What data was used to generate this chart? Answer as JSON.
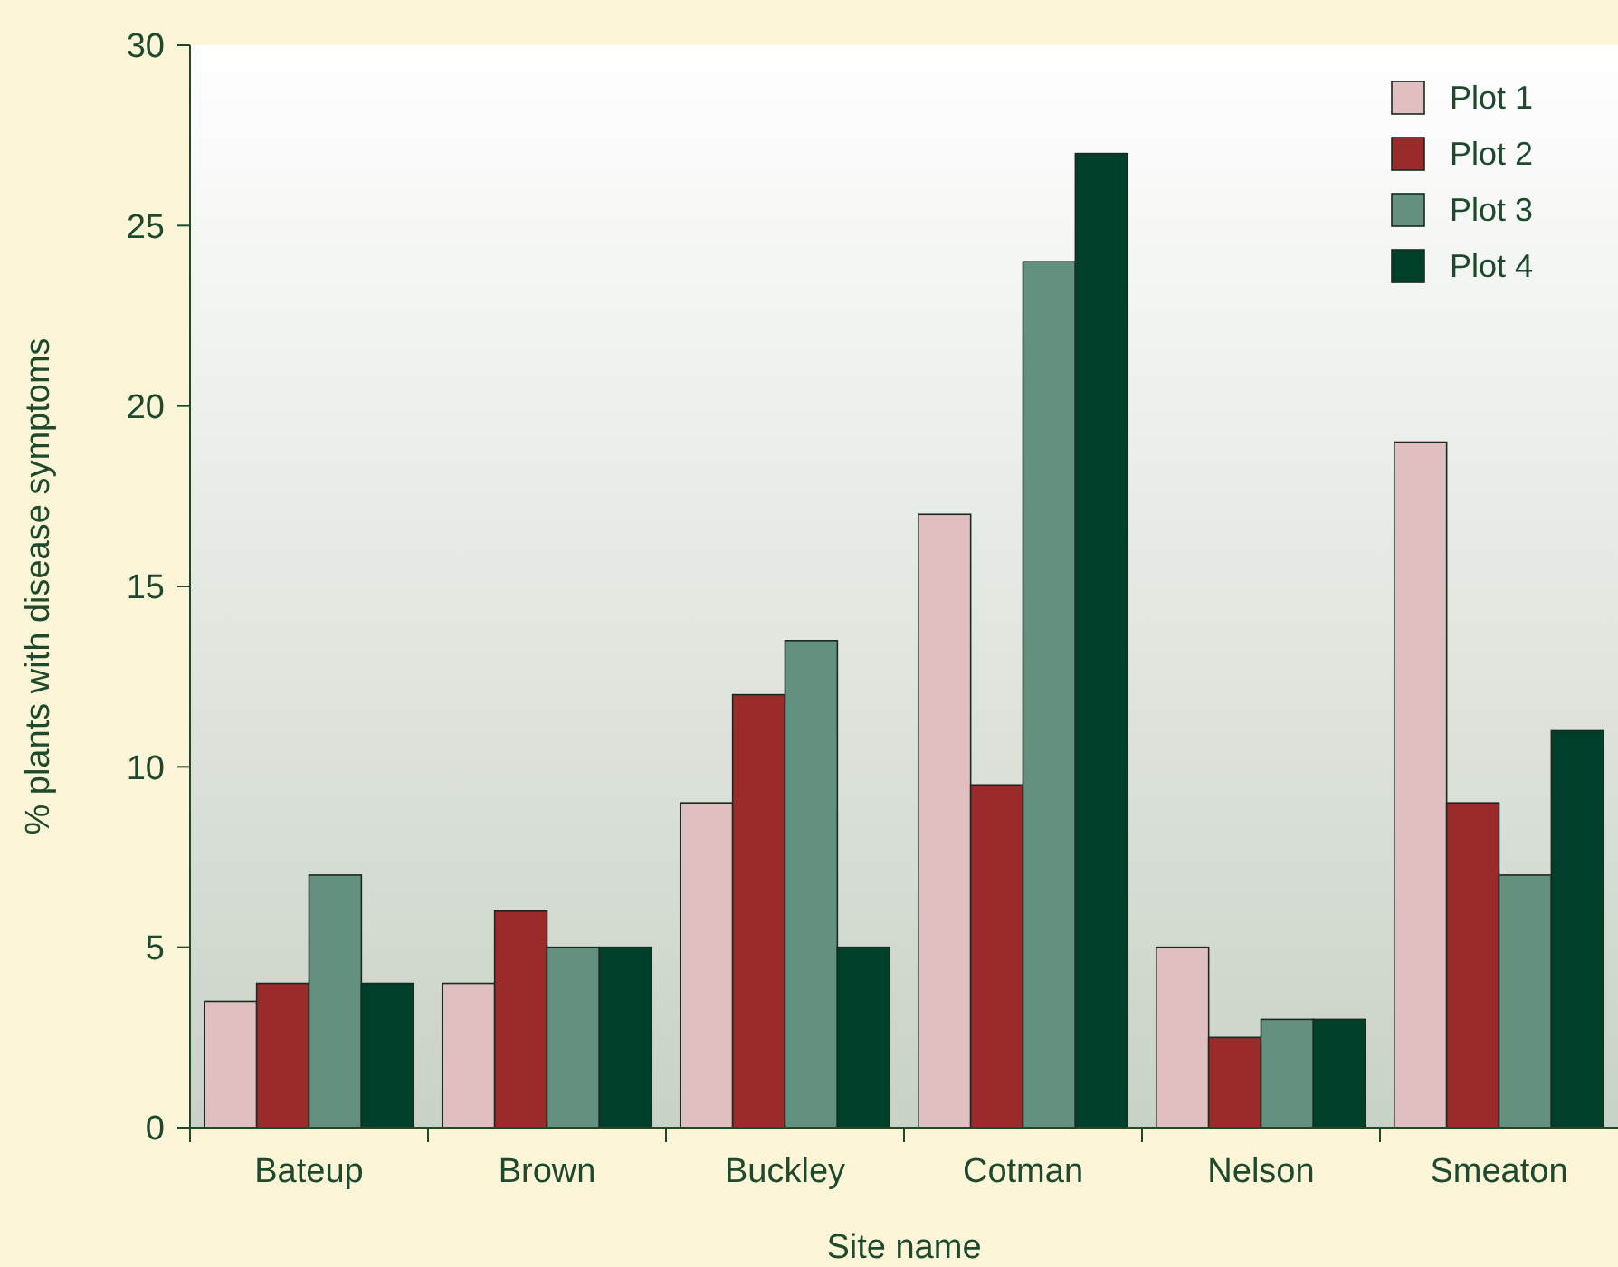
{
  "chart_data": {
    "type": "bar",
    "xlabel": "Site name",
    "ylabel": "% plants with disease symptoms",
    "categories": [
      "Bateup",
      "Brown",
      "Buckley",
      "Cotman",
      "Nelson",
      "Smeaton"
    ],
    "series": [
      {
        "name": "Plot 1",
        "color": "#e0bfc0",
        "values": [
          3.5,
          4,
          9,
          17,
          5,
          19
        ]
      },
      {
        "name": "Plot 2",
        "color": "#9b2a2a",
        "values": [
          4,
          6,
          12,
          9.5,
          2.5,
          9
        ]
      },
      {
        "name": "Plot 3",
        "color": "#649080",
        "values": [
          7,
          5,
          13.5,
          24,
          3,
          7
        ]
      },
      {
        "name": "Plot 4",
        "color": "#00402a",
        "values": [
          4,
          5,
          5,
          27,
          3,
          11
        ]
      }
    ],
    "ylim": [
      0,
      30
    ],
    "yticks": [
      0,
      5,
      10,
      15,
      20,
      25,
      30
    ],
    "grid": false,
    "legend": "top right"
  }
}
